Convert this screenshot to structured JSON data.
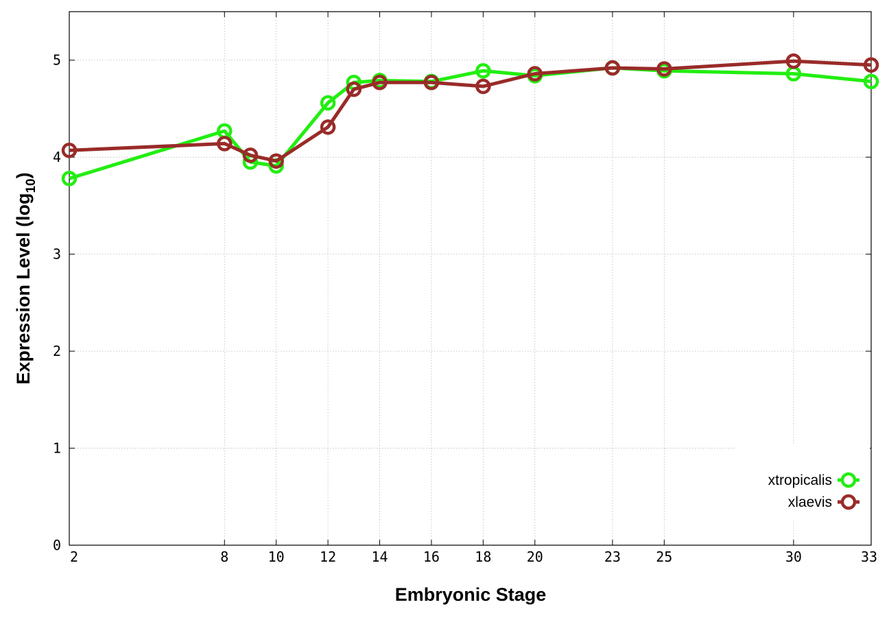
{
  "chart_data": {
    "type": "line",
    "xlabel": "Embryonic Stage",
    "ylabel": "Expression Level (log",
    "ylabel_subscript": "10",
    "ylabel_close": ")",
    "xlim": [
      2,
      33
    ],
    "ylim": [
      0,
      5.5
    ],
    "x_ticks": [
      2,
      8,
      10,
      12,
      14,
      16,
      18,
      20,
      23,
      25,
      30,
      33
    ],
    "y_ticks": [
      0,
      1,
      2,
      3,
      4,
      5
    ],
    "grid": true,
    "legend_position": "bottom-right",
    "x": [
      2,
      8,
      9,
      10,
      12,
      13,
      14,
      16,
      18,
      20,
      23,
      25,
      30,
      33
    ],
    "series": [
      {
        "name": "xtropicalis",
        "color": "#22ee11",
        "marker": "circle",
        "values": [
          3.78,
          4.27,
          3.95,
          3.91,
          4.56,
          4.77,
          4.79,
          4.78,
          4.89,
          4.84,
          4.92,
          4.89,
          4.86,
          4.78
        ]
      },
      {
        "name": "xlaevis",
        "color": "#992b29",
        "marker": "circle",
        "values": [
          4.07,
          4.14,
          4.02,
          3.96,
          4.31,
          4.7,
          4.77,
          4.77,
          4.73,
          4.86,
          4.92,
          4.91,
          4.99,
          4.95
        ]
      }
    ]
  }
}
